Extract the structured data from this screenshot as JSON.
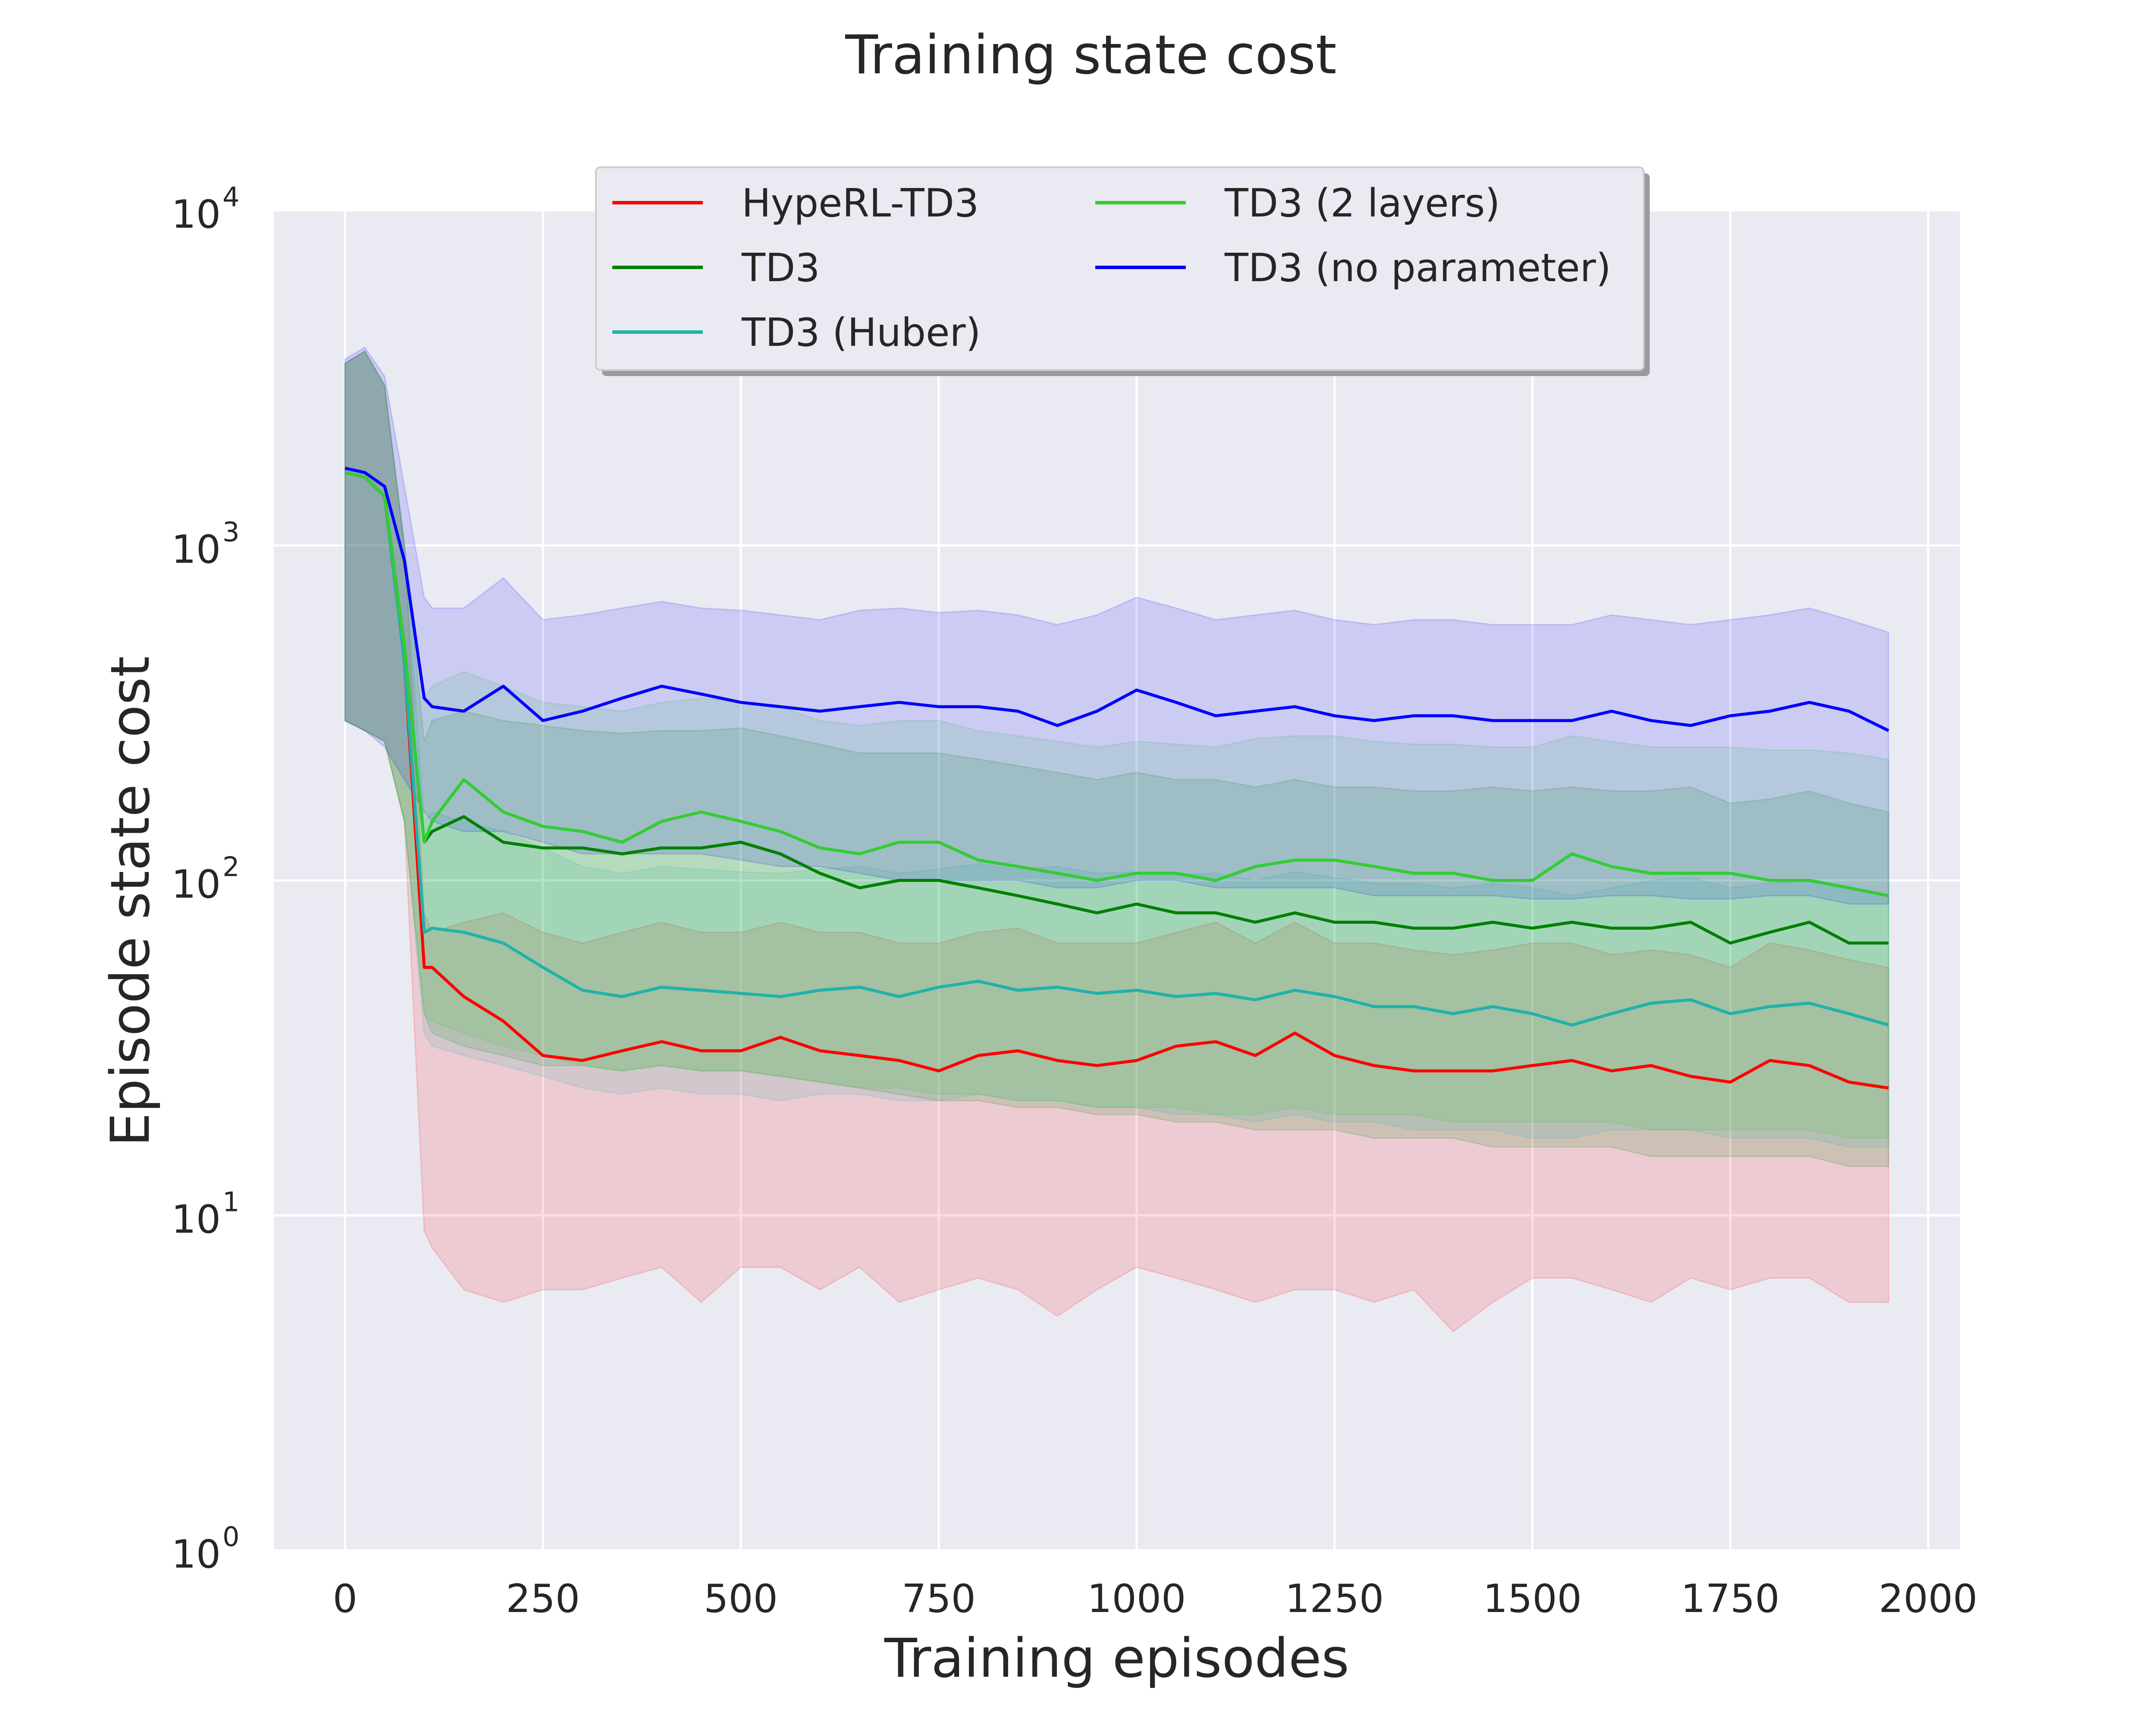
{
  "chart_data": {
    "type": "line",
    "title": "Training state cost",
    "xlabel": "Training episodes",
    "ylabel": "Episode state cost",
    "yscale": "log",
    "xlim": [
      -90,
      2040
    ],
    "ylim": [
      1,
      10000
    ],
    "x_ticks": [
      0,
      250,
      500,
      750,
      1000,
      1250,
      1500,
      1750,
      2000
    ],
    "x_tick_labels": [
      "0",
      "250",
      "500",
      "750",
      "1000",
      "1250",
      "1500",
      "1750",
      "2000"
    ],
    "y_ticks": [
      {
        "value": 1,
        "base": "10",
        "exp": "0"
      },
      {
        "value": 10,
        "base": "10",
        "exp": "1"
      },
      {
        "value": 100,
        "base": "10",
        "exp": "2"
      },
      {
        "value": 1000,
        "base": "10",
        "exp": "3"
      },
      {
        "value": 10000,
        "base": "10",
        "exp": "4"
      }
    ],
    "grid": true,
    "legend_placement": "upper center",
    "x": [
      0,
      25,
      50,
      75,
      100,
      110,
      150,
      200,
      250,
      300,
      350,
      400,
      450,
      500,
      550,
      600,
      650,
      700,
      750,
      800,
      850,
      900,
      950,
      1000,
      1050,
      1100,
      1150,
      1200,
      1250,
      1300,
      1350,
      1400,
      1450,
      1500,
      1550,
      1600,
      1650,
      1700,
      1750,
      1800,
      1850,
      1900,
      1950
    ],
    "series": [
      {
        "name": "HypeRL-TD3",
        "color": "#ff0000",
        "values": [
          1650,
          1600,
          1400,
          450,
          55,
          55,
          45,
          38,
          30,
          29,
          31,
          33,
          31,
          31,
          34,
          31,
          30,
          29,
          27,
          30,
          31,
          29,
          28,
          29,
          32,
          33,
          30,
          35,
          30,
          28,
          27,
          27,
          27,
          28,
          29,
          27,
          28,
          26,
          25,
          29,
          28,
          25,
          24
        ],
        "lower": [
          300,
          280,
          260,
          150,
          9,
          8,
          6,
          5.5,
          6,
          6,
          6.5,
          7,
          5.5,
          7,
          7,
          6,
          7,
          5.5,
          6,
          6.5,
          6,
          5,
          6,
          7,
          6.5,
          6,
          5.5,
          6,
          6,
          5.5,
          6,
          4.5,
          5.5,
          6.5,
          6.5,
          6,
          5.5,
          6.5,
          6,
          6.5,
          6.5,
          5.5,
          5.5
        ],
        "upper": [
          3500,
          3800,
          3000,
          1000,
          80,
          70,
          75,
          80,
          70,
          65,
          70,
          75,
          70,
          70,
          75,
          70,
          70,
          65,
          65,
          70,
          72,
          65,
          65,
          65,
          70,
          75,
          65,
          75,
          65,
          65,
          62,
          60,
          62,
          65,
          65,
          60,
          62,
          60,
          55,
          65,
          62,
          58,
          55
        ]
      },
      {
        "name": "TD3",
        "color": "#008000",
        "values": [
          1650,
          1600,
          1400,
          500,
          130,
          140,
          155,
          130,
          125,
          125,
          120,
          125,
          125,
          130,
          120,
          105,
          95,
          100,
          100,
          95,
          90,
          85,
          80,
          85,
          80,
          80,
          75,
          80,
          75,
          75,
          72,
          72,
          75,
          72,
          75,
          72,
          72,
          75,
          65,
          70,
          75,
          65,
          65
        ],
        "lower": [
          300,
          280,
          260,
          150,
          40,
          35,
          32,
          30,
          28,
          28,
          27,
          28,
          27,
          27,
          26,
          25,
          24,
          23,
          22,
          22,
          21,
          21,
          20,
          20,
          19,
          19,
          18,
          18,
          18,
          17,
          17,
          17,
          16,
          16,
          16,
          16,
          15,
          15,
          15,
          15,
          15,
          14,
          14
        ],
        "upper": [
          3500,
          3800,
          3000,
          1000,
          260,
          300,
          320,
          300,
          290,
          280,
          275,
          280,
          280,
          285,
          270,
          255,
          240,
          240,
          240,
          230,
          220,
          210,
          200,
          210,
          200,
          200,
          190,
          200,
          190,
          190,
          185,
          185,
          190,
          185,
          190,
          185,
          185,
          190,
          170,
          175,
          185,
          170,
          160
        ]
      },
      {
        "name": "TD3 (Huber)",
        "color": "#20b2aa",
        "values": [
          1650,
          1600,
          1400,
          450,
          70,
          72,
          70,
          65,
          55,
          47,
          45,
          48,
          47,
          46,
          45,
          47,
          48,
          45,
          48,
          50,
          47,
          48,
          46,
          47,
          45,
          46,
          44,
          47,
          45,
          42,
          42,
          40,
          42,
          40,
          37,
          40,
          43,
          44,
          40,
          42,
          43,
          40,
          37
        ],
        "lower": [
          300,
          280,
          260,
          150,
          35,
          32,
          30,
          28,
          26,
          24,
          23,
          24,
          23,
          23,
          22,
          23,
          23,
          22,
          22,
          23,
          22,
          22,
          21,
          21,
          20,
          20,
          19,
          20,
          19,
          19,
          18,
          18,
          18,
          17,
          17,
          18,
          18,
          18,
          17,
          17,
          17,
          16,
          16
        ],
        "upper": [
          3500,
          3800,
          3000,
          1000,
          150,
          160,
          150,
          140,
          125,
          110,
          105,
          110,
          108,
          106,
          105,
          108,
          110,
          105,
          108,
          112,
          108,
          110,
          105,
          106,
          104,
          105,
          100,
          106,
          102,
          98,
          98,
          95,
          98,
          95,
          90,
          95,
          100,
          102,
          95,
          98,
          100,
          95,
          90
        ]
      },
      {
        "name": "TD3 (2 layers)",
        "color": "#32cd32",
        "values": [
          1650,
          1600,
          1400,
          500,
          130,
          150,
          200,
          160,
          145,
          140,
          130,
          150,
          160,
          150,
          140,
          125,
          120,
          130,
          130,
          115,
          110,
          105,
          100,
          105,
          105,
          100,
          110,
          115,
          115,
          110,
          105,
          105,
          100,
          100,
          120,
          110,
          105,
          105,
          105,
          100,
          100,
          95,
          90
        ],
        "lower": [
          300,
          280,
          260,
          150,
          40,
          38,
          35,
          32,
          30,
          28,
          27,
          28,
          27,
          27,
          26,
          25,
          24,
          24,
          23,
          23,
          22,
          22,
          21,
          21,
          21,
          20,
          20,
          21,
          20,
          20,
          20,
          19,
          19,
          19,
          19,
          19,
          18,
          18,
          18,
          18,
          18,
          17,
          17
        ],
        "upper": [
          3500,
          3800,
          3000,
          1000,
          350,
          380,
          420,
          380,
          340,
          330,
          320,
          340,
          350,
          340,
          330,
          300,
          290,
          300,
          300,
          280,
          270,
          260,
          250,
          260,
          255,
          250,
          265,
          270,
          270,
          260,
          255,
          255,
          250,
          250,
          270,
          260,
          250,
          250,
          250,
          245,
          245,
          240,
          230
        ]
      },
      {
        "name": "TD3 (no parameter)",
        "color": "#0000ff",
        "values": [
          1700,
          1650,
          1500,
          900,
          350,
          330,
          320,
          380,
          300,
          320,
          350,
          380,
          360,
          340,
          330,
          320,
          330,
          340,
          330,
          330,
          320,
          290,
          320,
          370,
          340,
          310,
          320,
          330,
          310,
          300,
          310,
          310,
          300,
          300,
          300,
          320,
          300,
          290,
          310,
          320,
          340,
          320,
          280
        ],
        "lower": [
          300,
          280,
          250,
          200,
          160,
          150,
          140,
          140,
          130,
          120,
          120,
          120,
          120,
          115,
          110,
          110,
          105,
          100,
          100,
          100,
          100,
          95,
          95,
          100,
          100,
          95,
          95,
          95,
          95,
          90,
          90,
          90,
          90,
          88,
          88,
          90,
          90,
          88,
          88,
          90,
          90,
          85,
          85
        ],
        "upper": [
          3600,
          3900,
          3200,
          1500,
          700,
          650,
          650,
          800,
          600,
          620,
          650,
          680,
          650,
          640,
          620,
          600,
          640,
          650,
          630,
          640,
          620,
          580,
          620,
          700,
          650,
          600,
          620,
          640,
          600,
          580,
          600,
          600,
          580,
          580,
          580,
          620,
          600,
          580,
          600,
          620,
          650,
          600,
          550
        ]
      }
    ]
  }
}
